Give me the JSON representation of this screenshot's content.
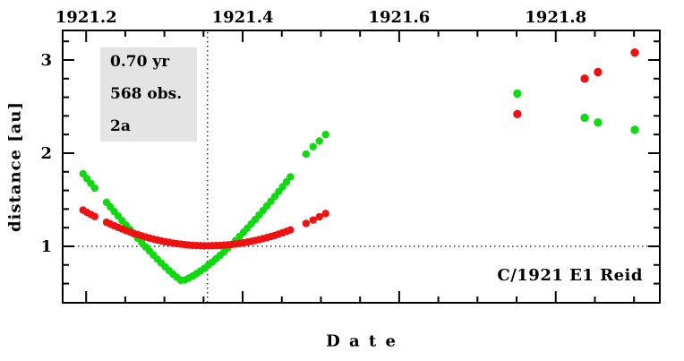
{
  "figure": {
    "stats_box": {
      "arc_length": "0.70 yr",
      "observations": "568 obs.",
      "figure_label": "2a"
    },
    "object_label": "C/1921 E1 Reid"
  },
  "chart_data": {
    "type": "scatter",
    "title": "",
    "xlabel": "Date",
    "xlabel_display": "D a t e",
    "ylabel": "distance [au]",
    "grid": false,
    "x_axis": {
      "min": 1921.17,
      "max": 1921.933,
      "minor_step": 0.05,
      "labels_position": "top",
      "major_ticks": [
        {
          "value": 1921.2,
          "label": "1921.2"
        },
        {
          "value": 1921.4,
          "label": "1921.4"
        },
        {
          "value": 1921.6,
          "label": "1921.6"
        },
        {
          "value": 1921.8,
          "label": "1921.8"
        }
      ]
    },
    "y_axis": {
      "min": 0.394,
      "max": 3.317,
      "minor_step": 0.2,
      "major_ticks": [
        {
          "value": 1,
          "label": "1"
        },
        {
          "value": 2,
          "label": "2"
        },
        {
          "value": 3,
          "label": "3"
        }
      ]
    },
    "reference_lines": {
      "style": "dotted",
      "color": "#333333",
      "horizontal_distance_au": 1.0,
      "vertical_date": 1921.355
    },
    "series": [
      {
        "name": "green",
        "color": "#11d911",
        "points": [
          [
            1921.196,
            1.778
          ],
          [
            1921.201,
            1.727
          ],
          [
            1921.206,
            1.675
          ],
          [
            1921.211,
            1.625
          ],
          [
            1921.226,
            1.472
          ],
          [
            1921.231,
            1.422
          ],
          [
            1921.236,
            1.373
          ],
          [
            1921.241,
            1.324
          ],
          [
            1921.246,
            1.275
          ],
          [
            1921.251,
            1.227
          ],
          [
            1921.256,
            1.18
          ],
          [
            1921.261,
            1.132
          ],
          [
            1921.266,
            1.086
          ],
          [
            1921.271,
            1.04
          ],
          [
            1921.276,
            0.994
          ],
          [
            1921.281,
            0.95
          ],
          [
            1921.286,
            0.906
          ],
          [
            1921.291,
            0.862
          ],
          [
            1921.296,
            0.82
          ],
          [
            1921.301,
            0.779
          ],
          [
            1921.306,
            0.739
          ],
          [
            1921.311,
            0.701
          ],
          [
            1921.316,
            0.666
          ],
          [
            1921.321,
            0.635
          ],
          [
            1921.326,
            0.639
          ],
          [
            1921.331,
            0.658
          ],
          [
            1921.336,
            0.68
          ],
          [
            1921.341,
            0.706
          ],
          [
            1921.346,
            0.734
          ],
          [
            1921.351,
            0.764
          ],
          [
            1921.356,
            0.797
          ],
          [
            1921.361,
            0.83
          ],
          [
            1921.366,
            0.866
          ],
          [
            1921.371,
            0.903
          ],
          [
            1921.376,
            0.941
          ],
          [
            1921.381,
            0.981
          ],
          [
            1921.386,
            1.021
          ],
          [
            1921.391,
            1.063
          ],
          [
            1921.396,
            1.106
          ],
          [
            1921.401,
            1.15
          ],
          [
            1921.406,
            1.195
          ],
          [
            1921.411,
            1.241
          ],
          [
            1921.416,
            1.288
          ],
          [
            1921.421,
            1.335
          ],
          [
            1921.426,
            1.384
          ],
          [
            1921.431,
            1.433
          ],
          [
            1921.436,
            1.483
          ],
          [
            1921.441,
            1.534
          ],
          [
            1921.446,
            1.586
          ],
          [
            1921.451,
            1.638
          ],
          [
            1921.456,
            1.691
          ],
          [
            1921.461,
            1.745
          ],
          [
            1921.481,
            1.99
          ],
          [
            1921.49,
            2.07
          ],
          [
            1921.498,
            2.13
          ],
          [
            1921.506,
            2.2
          ],
          [
            1921.751,
            2.64
          ],
          [
            1921.837,
            2.38
          ],
          [
            1921.854,
            2.33
          ],
          [
            1921.901,
            2.25
          ]
        ]
      },
      {
        "name": "red",
        "color": "#ee1111",
        "points": [
          [
            1921.196,
            1.389
          ],
          [
            1921.201,
            1.365
          ],
          [
            1921.206,
            1.342
          ],
          [
            1921.211,
            1.32
          ],
          [
            1921.226,
            1.258
          ],
          [
            1921.231,
            1.239
          ],
          [
            1921.236,
            1.22
          ],
          [
            1921.241,
            1.203
          ],
          [
            1921.246,
            1.186
          ],
          [
            1921.251,
            1.169
          ],
          [
            1921.256,
            1.154
          ],
          [
            1921.261,
            1.139
          ],
          [
            1921.266,
            1.125
          ],
          [
            1921.271,
            1.112
          ],
          [
            1921.276,
            1.1
          ],
          [
            1921.281,
            1.088
          ],
          [
            1921.286,
            1.077
          ],
          [
            1921.291,
            1.067
          ],
          [
            1921.296,
            1.058
          ],
          [
            1921.301,
            1.049
          ],
          [
            1921.306,
            1.042
          ],
          [
            1921.311,
            1.034
          ],
          [
            1921.316,
            1.028
          ],
          [
            1921.321,
            1.023
          ],
          [
            1921.326,
            1.018
          ],
          [
            1921.331,
            1.014
          ],
          [
            1921.336,
            1.01
          ],
          [
            1921.341,
            1.008
          ],
          [
            1921.346,
            1.006
          ],
          [
            1921.351,
            1.005
          ],
          [
            1921.356,
            1.005
          ],
          [
            1921.361,
            1.006
          ],
          [
            1921.366,
            1.007
          ],
          [
            1921.371,
            1.009
          ],
          [
            1921.376,
            1.012
          ],
          [
            1921.381,
            1.015
          ],
          [
            1921.386,
            1.02
          ],
          [
            1921.391,
            1.025
          ],
          [
            1921.396,
            1.031
          ],
          [
            1921.401,
            1.037
          ],
          [
            1921.406,
            1.045
          ],
          [
            1921.411,
            1.053
          ],
          [
            1921.416,
            1.062
          ],
          [
            1921.421,
            1.071
          ],
          [
            1921.426,
            1.082
          ],
          [
            1921.431,
            1.093
          ],
          [
            1921.436,
            1.105
          ],
          [
            1921.441,
            1.117
          ],
          [
            1921.446,
            1.131
          ],
          [
            1921.451,
            1.145
          ],
          [
            1921.456,
            1.16
          ],
          [
            1921.461,
            1.176
          ],
          [
            1921.481,
            1.246
          ],
          [
            1921.49,
            1.282
          ],
          [
            1921.498,
            1.316
          ],
          [
            1921.506,
            1.352
          ],
          [
            1921.751,
            2.42
          ],
          [
            1921.837,
            2.8
          ],
          [
            1921.854,
            2.87
          ],
          [
            1921.901,
            3.08
          ]
        ]
      }
    ]
  }
}
